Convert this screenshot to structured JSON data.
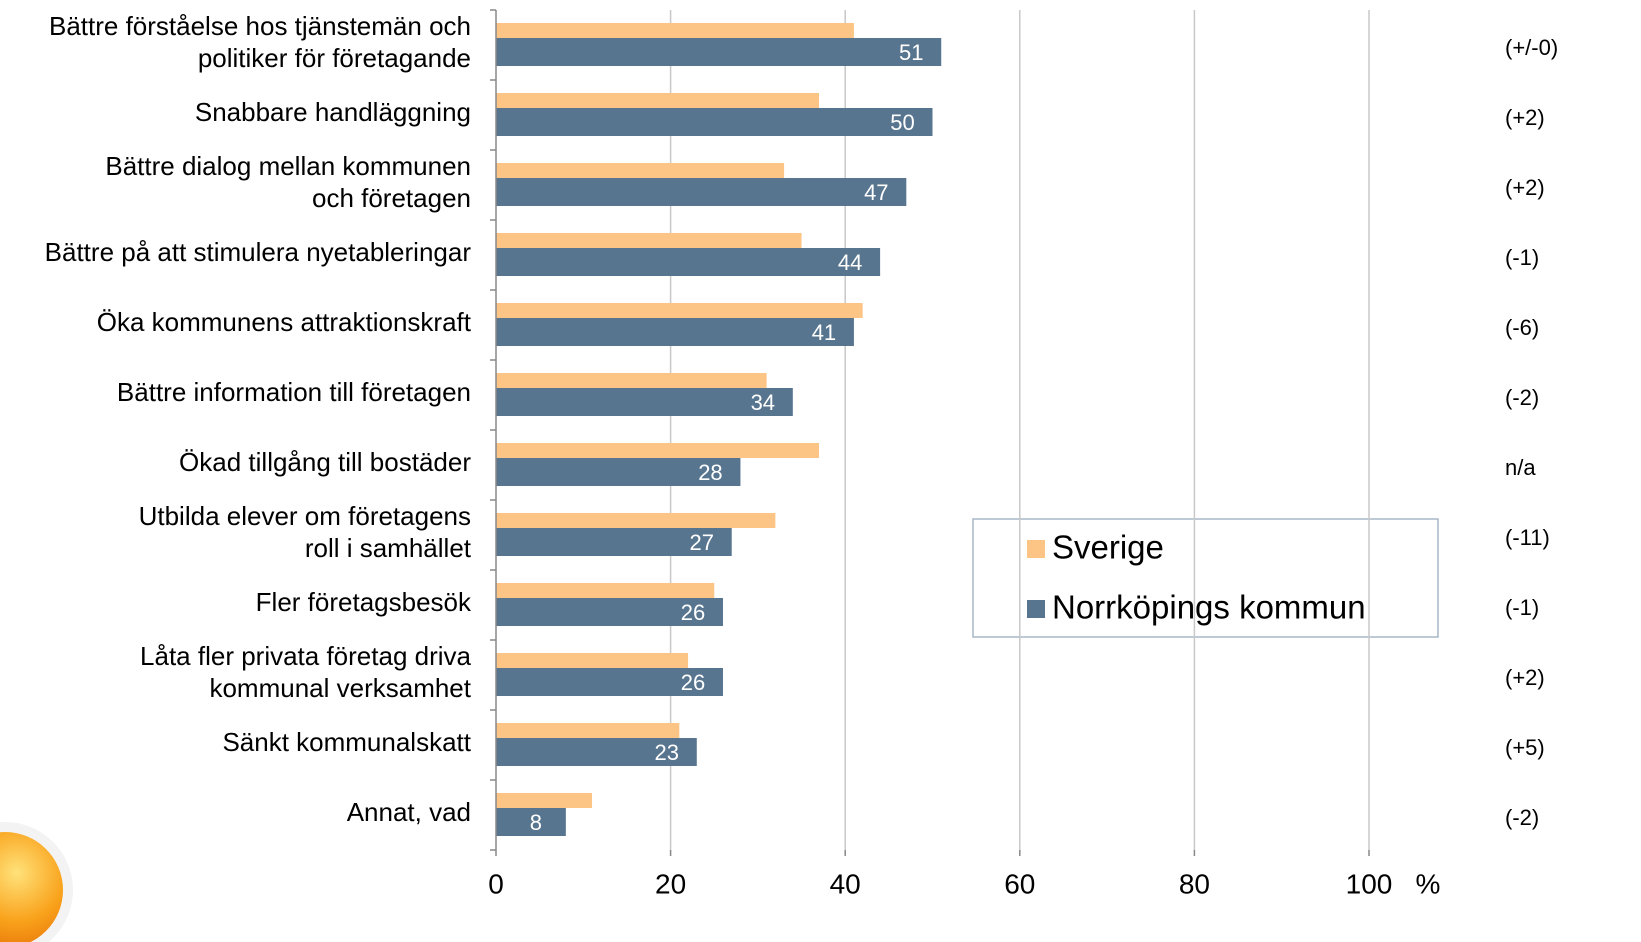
{
  "chart_data": {
    "type": "bar",
    "orientation": "horizontal",
    "categories": [
      "Bättre förståelse hos tjänstemän och\npolitiker för företagande",
      "Snabbare handläggning",
      "Bättre dialog mellan kommunen\noch företagen",
      "Bättre på att stimulera nyetableringar",
      "Öka kommunens attraktionskraft",
      "Bättre information till företagen",
      "Ökad tillgång till bostäder",
      "Utbilda elever om företagens\nroll i samhället",
      "Fler företagsbesök",
      "Låta fler privata företag driva\nkommunal verksamhet",
      "Sänkt kommunalskatt",
      "Annat, vad"
    ],
    "series": [
      {
        "name": "Sverige",
        "color": "#fcc585",
        "values": [
          41,
          37,
          33,
          35,
          42,
          31,
          37,
          32,
          25,
          22,
          21,
          11
        ]
      },
      {
        "name": "Norrköpings kommun",
        "color": "#587590",
        "values": [
          51,
          50,
          47,
          44,
          41,
          34,
          28,
          27,
          26,
          26,
          23,
          8
        ]
      }
    ],
    "annotations": [
      "(+/-0)",
      "(+2)",
      "(+2)",
      "(-1)",
      "(-6)",
      "(-2)",
      "n/a",
      "(-11)",
      "(-1)",
      "(+2)",
      "(+5)",
      "(-2)"
    ],
    "x_label": "%",
    "xlim": [
      0,
      100
    ],
    "xticks": [
      0,
      20,
      40,
      60,
      80,
      100
    ],
    "grid": true,
    "legend": "right"
  }
}
